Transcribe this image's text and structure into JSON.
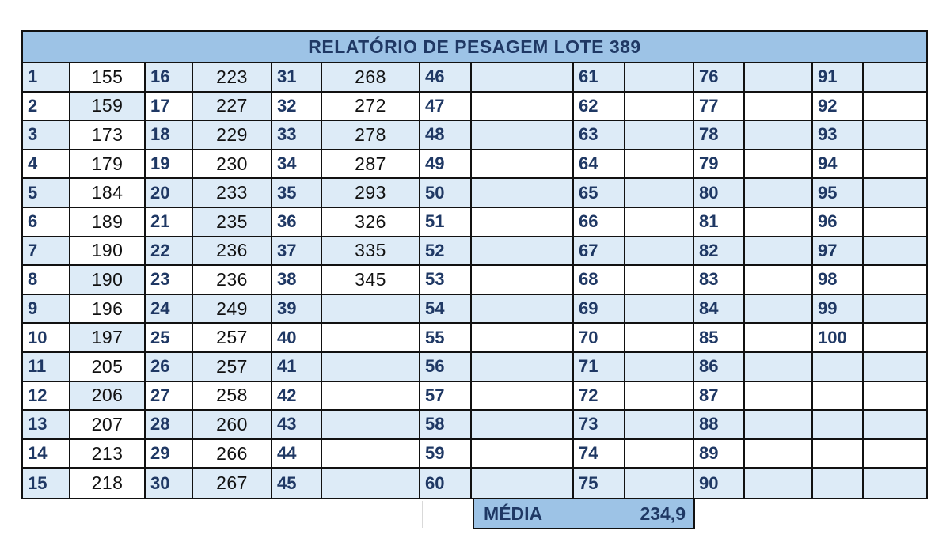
{
  "report": {
    "title": "RELATÓRIO DE PESAGEM LOTE 389",
    "groups": [
      {
        "numbers": [
          "1",
          "2",
          "3",
          "4",
          "5",
          "6",
          "7",
          "8",
          "9",
          "10",
          "11",
          "12",
          "13",
          "14",
          "15"
        ],
        "weights": [
          "155",
          "159",
          "173",
          "179",
          "184",
          "189",
          "190",
          "190",
          "196",
          "197",
          "205",
          "206",
          "207",
          "213",
          "218"
        ]
      },
      {
        "numbers": [
          "16",
          "17",
          "18",
          "19",
          "20",
          "21",
          "22",
          "23",
          "24",
          "25",
          "26",
          "27",
          "28",
          "29",
          "30"
        ],
        "weights": [
          "223",
          "227",
          "229",
          "230",
          "233",
          "235",
          "236",
          "236",
          "249",
          "257",
          "257",
          "258",
          "260",
          "266",
          "267"
        ]
      },
      {
        "numbers": [
          "31",
          "32",
          "33",
          "34",
          "35",
          "36",
          "37",
          "38",
          "39",
          "40",
          "41",
          "42",
          "43",
          "44",
          "45"
        ],
        "weights": [
          "268",
          "272",
          "278",
          "287",
          "293",
          "326",
          "335",
          "345",
          "",
          "",
          "",
          "",
          "",
          "",
          ""
        ]
      },
      {
        "numbers": [
          "46",
          "47",
          "48",
          "49",
          "50",
          "51",
          "52",
          "53",
          "54",
          "55",
          "56",
          "57",
          "58",
          "59",
          "60"
        ],
        "weights": [
          "",
          "",
          "",
          "",
          "",
          "",
          "",
          "",
          "",
          "",
          "",
          "",
          "",
          "",
          ""
        ]
      },
      {
        "numbers": [
          "61",
          "62",
          "63",
          "64",
          "65",
          "66",
          "67",
          "68",
          "69",
          "70",
          "71",
          "72",
          "73",
          "74",
          "75"
        ],
        "weights": [
          "",
          "",
          "",
          "",
          "",
          "",
          "",
          "",
          "",
          "",
          "",
          "",
          "",
          "",
          ""
        ]
      },
      {
        "numbers": [
          "76",
          "77",
          "78",
          "79",
          "80",
          "81",
          "82",
          "83",
          "84",
          "85",
          "86",
          "87",
          "88",
          "89",
          "90"
        ],
        "weights": [
          "",
          "",
          "",
          "",
          "",
          "",
          "",
          "",
          "",
          "",
          "",
          "",
          "",
          "",
          ""
        ]
      },
      {
        "numbers": [
          "91",
          "92",
          "93",
          "94",
          "95",
          "96",
          "97",
          "98",
          "99",
          "100",
          "",
          "",
          "",
          "",
          ""
        ],
        "weights": [
          "",
          "",
          "",
          "",
          "",
          "",
          "",
          "",
          "",
          "",
          "",
          "",
          "",
          "",
          ""
        ]
      }
    ],
    "summary": {
      "label": "MÉDIA",
      "value": "234,9"
    }
  },
  "colors": {
    "header_fill": "#9dc3e6",
    "stripe_fill": "#ddebf7",
    "number_text": "#1f3864",
    "border": "#111111"
  }
}
